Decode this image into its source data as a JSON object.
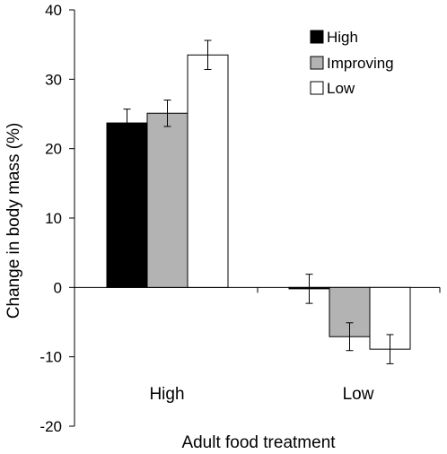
{
  "chart_data": {
    "type": "bar",
    "title": "",
    "xlabel": "Adult food treatment",
    "ylabel": "Change in body mass (%)",
    "categories": [
      "High",
      "Low"
    ],
    "ylim": [
      -20,
      40
    ],
    "yticks": [
      "40",
      "30",
      "20",
      "10",
      "0",
      "-10",
      "-20"
    ],
    "series": [
      {
        "name": "High",
        "values": [
          23.7,
          -0.2
        ],
        "errors": [
          2.0,
          2.1
        ],
        "color": "#000000"
      },
      {
        "name": "Improving",
        "values": [
          25.1,
          -7.1
        ],
        "errors": [
          1.9,
          2.0
        ],
        "color": "#b3b3b3"
      },
      {
        "name": "Low",
        "values": [
          33.5,
          -8.9
        ],
        "errors": [
          2.1,
          2.1
        ],
        "color": "#ffffff"
      }
    ],
    "legend_position": "top-right",
    "grid": false
  }
}
